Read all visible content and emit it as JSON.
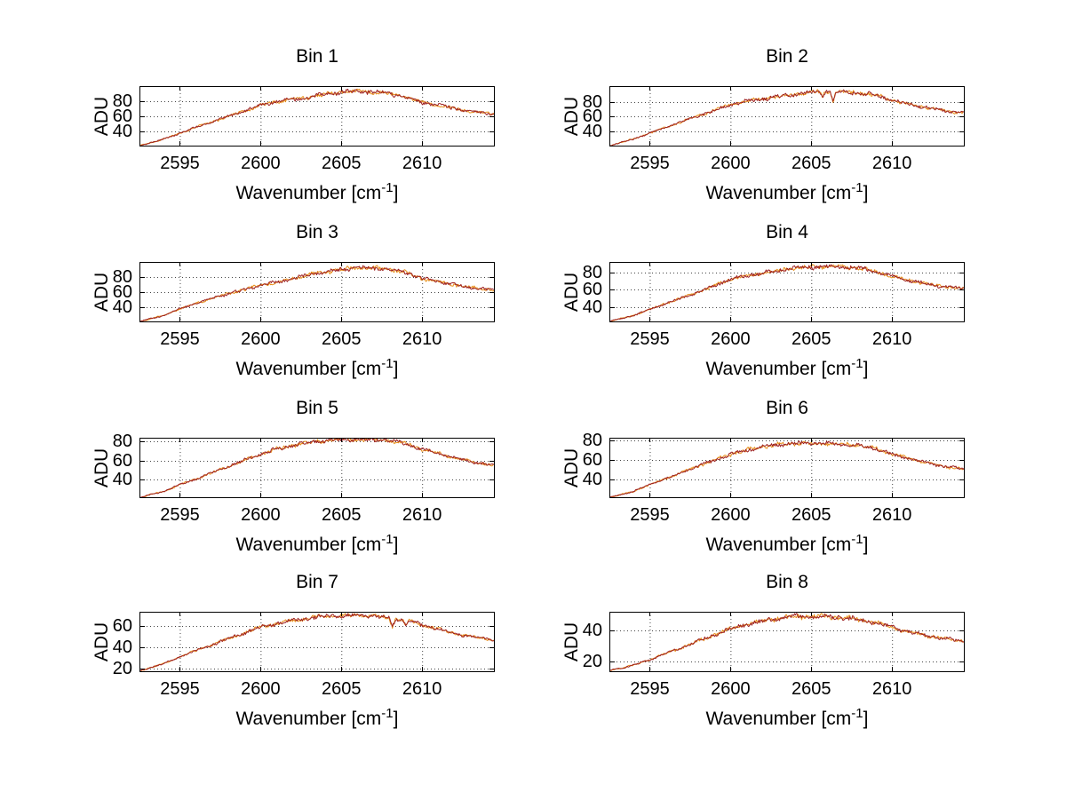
{
  "figure": {
    "background": "#ffffff",
    "axis_color": "#000000",
    "grid_color": "#444444",
    "text_color": "#000000",
    "ylabel": "ADU",
    "xlabel": {
      "prefix": "Wavenumber [cm",
      "sup": "-1",
      "suffix": "]"
    },
    "layout": "4 rows x 2 columns of line subplots, dotted grid on, white background"
  },
  "chart_data": [
    {
      "type": "line",
      "title": "Bin 1",
      "xlabel": "Wavenumber [cm^-1]",
      "ylabel": "ADU",
      "xlim": [
        2592.5,
        2614.5
      ],
      "ylim": [
        19,
        101
      ],
      "xticks": [
        2595,
        2600,
        2605,
        2610
      ],
      "yticks": [
        40,
        60,
        80
      ],
      "grid": true,
      "series": [
        {
          "name": "spectrum-orange",
          "color": "#E8901A"
        },
        {
          "name": "spectrum-darkred",
          "color": "#9E2222"
        }
      ],
      "envelope_x": [
        2592.5,
        2594,
        2595,
        2596,
        2598,
        2600,
        2601,
        2602,
        2603,
        2604,
        2605,
        2606,
        2607,
        2608,
        2609,
        2610,
        2611,
        2612,
        2613,
        2614.5
      ],
      "envelope_y": [
        20,
        29,
        37,
        45,
        60,
        75,
        80,
        83,
        86,
        90,
        93,
        94,
        93,
        91,
        86,
        79,
        75,
        71,
        67,
        63
      ],
      "noise_amp": 2.4,
      "notches": []
    },
    {
      "type": "line",
      "title": "Bin 2",
      "xlabel": "Wavenumber [cm^-1]",
      "ylabel": "ADU",
      "xlim": [
        2592.5,
        2614.5
      ],
      "ylim": [
        20,
        101
      ],
      "xticks": [
        2595,
        2600,
        2605,
        2610
      ],
      "yticks": [
        40,
        60,
        80
      ],
      "grid": true,
      "series": [
        {
          "name": "spectrum-orange",
          "color": "#E8901A"
        },
        {
          "name": "spectrum-darkred",
          "color": "#9E2222"
        }
      ],
      "envelope_x": [
        2592.5,
        2594,
        2595,
        2596,
        2598,
        2600,
        2601,
        2602,
        2603,
        2604,
        2605,
        2606,
        2607,
        2608,
        2609,
        2610,
        2611,
        2612,
        2613,
        2614.5
      ],
      "envelope_y": [
        21,
        30,
        38,
        46,
        61,
        76,
        81,
        84,
        87,
        90,
        93,
        94,
        93,
        92,
        89,
        82,
        77,
        73,
        69,
        65
      ],
      "noise_amp": 2.4,
      "notches": [
        {
          "x": 2605.7,
          "depth": 8,
          "width": 0.16
        },
        {
          "x": 2606.35,
          "depth": 13,
          "width": 0.18
        }
      ]
    },
    {
      "type": "line",
      "title": "Bin 3",
      "xlabel": "Wavenumber [cm^-1]",
      "ylabel": "ADU",
      "xlim": [
        2592.5,
        2614.5
      ],
      "ylim": [
        20,
        100
      ],
      "xticks": [
        2595,
        2600,
        2605,
        2610
      ],
      "yticks": [
        40,
        60,
        80
      ],
      "grid": true,
      "series": [
        {
          "name": "spectrum-orange",
          "color": "#E8901A"
        },
        {
          "name": "spectrum-darkred",
          "color": "#9E2222"
        }
      ],
      "envelope_x": [
        2592.5,
        2594,
        2595,
        2596,
        2598,
        2600,
        2601,
        2602,
        2603,
        2604,
        2605,
        2606,
        2607,
        2608,
        2609,
        2610,
        2611,
        2612,
        2613,
        2614.5
      ],
      "envelope_y": [
        21,
        29,
        38,
        45,
        58,
        69,
        73,
        78,
        83,
        87,
        90,
        92,
        92,
        90,
        86,
        78,
        74,
        70,
        66,
        63
      ],
      "noise_amp": 2.35,
      "notches": []
    },
    {
      "type": "line",
      "title": "Bin 4",
      "xlabel": "Wavenumber [cm^-1]",
      "ylabel": "ADU",
      "xlim": [
        2592.5,
        2614.5
      ],
      "ylim": [
        22,
        92
      ],
      "xticks": [
        2595,
        2600,
        2605,
        2610
      ],
      "yticks": [
        40,
        60,
        80
      ],
      "grid": true,
      "series": [
        {
          "name": "spectrum-orange",
          "color": "#E8901A"
        },
        {
          "name": "spectrum-darkred",
          "color": "#9E2222"
        }
      ],
      "envelope_x": [
        2592.5,
        2594,
        2595,
        2596,
        2598,
        2600,
        2601,
        2602,
        2603,
        2604,
        2605,
        2606,
        2607,
        2608,
        2609,
        2610,
        2611,
        2612,
        2613,
        2614.5
      ],
      "envelope_y": [
        23,
        30,
        37,
        44,
        57,
        72,
        76,
        79,
        82,
        85,
        86,
        87,
        86,
        85,
        81,
        75,
        71,
        67,
        64,
        61
      ],
      "noise_amp": 2.05,
      "notches": []
    },
    {
      "type": "line",
      "title": "Bin 5",
      "xlabel": "Wavenumber [cm^-1]",
      "ylabel": "ADU",
      "xlim": [
        2592.5,
        2614.5
      ],
      "ylim": [
        21,
        84
      ],
      "xticks": [
        2595,
        2600,
        2605,
        2610
      ],
      "yticks": [
        40,
        60,
        80
      ],
      "grid": true,
      "series": [
        {
          "name": "spectrum-orange",
          "color": "#E8901A"
        },
        {
          "name": "spectrum-darkred",
          "color": "#9E2222"
        }
      ],
      "envelope_x": [
        2592.5,
        2594,
        2595,
        2596,
        2598,
        2600,
        2601,
        2602,
        2603,
        2604,
        2605,
        2606,
        2607,
        2608,
        2609,
        2610,
        2611,
        2612,
        2613,
        2614.5
      ],
      "envelope_y": [
        21.5,
        28,
        35,
        41,
        54,
        67,
        72,
        76,
        79,
        81,
        82,
        82,
        82,
        81,
        78,
        72,
        68,
        63,
        59,
        55
      ],
      "noise_amp": 1.85,
      "notches": []
    },
    {
      "type": "line",
      "title": "Bin 6",
      "xlabel": "Wavenumber [cm^-1]",
      "ylabel": "ADU",
      "xlim": [
        2592.5,
        2614.5
      ],
      "ylim": [
        21,
        83
      ],
      "xticks": [
        2595,
        2600,
        2605,
        2610
      ],
      "yticks": [
        40,
        60,
        80
      ],
      "grid": true,
      "series": [
        {
          "name": "spectrum-orange",
          "color": "#E8901A"
        },
        {
          "name": "spectrum-darkred",
          "color": "#9E2222"
        }
      ],
      "envelope_x": [
        2592.5,
        2594,
        2595,
        2596,
        2598,
        2600,
        2601,
        2602,
        2603,
        2604,
        2605,
        2606,
        2607,
        2608,
        2609,
        2610,
        2611,
        2612,
        2613,
        2614.5
      ],
      "envelope_y": [
        21.5,
        28,
        35,
        41,
        54,
        66,
        70,
        74,
        76,
        77,
        77,
        77,
        76,
        75,
        72,
        66,
        62,
        58,
        54,
        51
      ],
      "noise_amp": 1.8,
      "notches": []
    },
    {
      "type": "line",
      "title": "Bin 7",
      "xlabel": "Wavenumber [cm^-1]",
      "ylabel": "ADU",
      "xlim": [
        2592.5,
        2614.5
      ],
      "ylim": [
        17,
        73
      ],
      "xticks": [
        2595,
        2600,
        2605,
        2610
      ],
      "yticks": [
        20,
        40,
        60
      ],
      "grid": true,
      "series": [
        {
          "name": "spectrum-orange",
          "color": "#E8901A"
        },
        {
          "name": "spectrum-darkred",
          "color": "#9E2222"
        }
      ],
      "envelope_x": [
        2592.5,
        2594,
        2595,
        2596,
        2598,
        2600,
        2601,
        2602,
        2603,
        2604,
        2605,
        2606,
        2607,
        2608,
        2609,
        2610,
        2611,
        2612,
        2613,
        2614.5
      ],
      "envelope_y": [
        18,
        25,
        31,
        37,
        48,
        59,
        62,
        65,
        67,
        69,
        69,
        70,
        69,
        67,
        65,
        61,
        57,
        53,
        50,
        47
      ],
      "noise_amp": 1.65,
      "notches": [
        {
          "x": 2608.15,
          "depth": 7,
          "width": 0.2
        },
        {
          "x": 2609.0,
          "depth": 5,
          "width": 0.18
        }
      ]
    },
    {
      "type": "line",
      "title": "Bin 8",
      "xlabel": "Wavenumber [cm^-1]",
      "ylabel": "ADU",
      "xlim": [
        2592.5,
        2614.5
      ],
      "ylim": [
        13,
        52
      ],
      "xticks": [
        2595,
        2600,
        2605,
        2610
      ],
      "yticks": [
        20,
        40
      ],
      "grid": true,
      "series": [
        {
          "name": "spectrum-orange",
          "color": "#E8901A"
        },
        {
          "name": "spectrum-darkred",
          "color": "#9E2222"
        }
      ],
      "envelope_x": [
        2592.5,
        2594,
        2595,
        2596,
        2598,
        2600,
        2601,
        2602,
        2603,
        2604,
        2605,
        2606,
        2607,
        2608,
        2609,
        2610,
        2611,
        2612,
        2613,
        2614.5
      ],
      "envelope_y": [
        14,
        17.5,
        21,
        25,
        33,
        41,
        44,
        46,
        48,
        49,
        49,
        49,
        48,
        47,
        45,
        42,
        39,
        37,
        35,
        33
      ],
      "noise_amp": 1.3,
      "notches": []
    }
  ]
}
